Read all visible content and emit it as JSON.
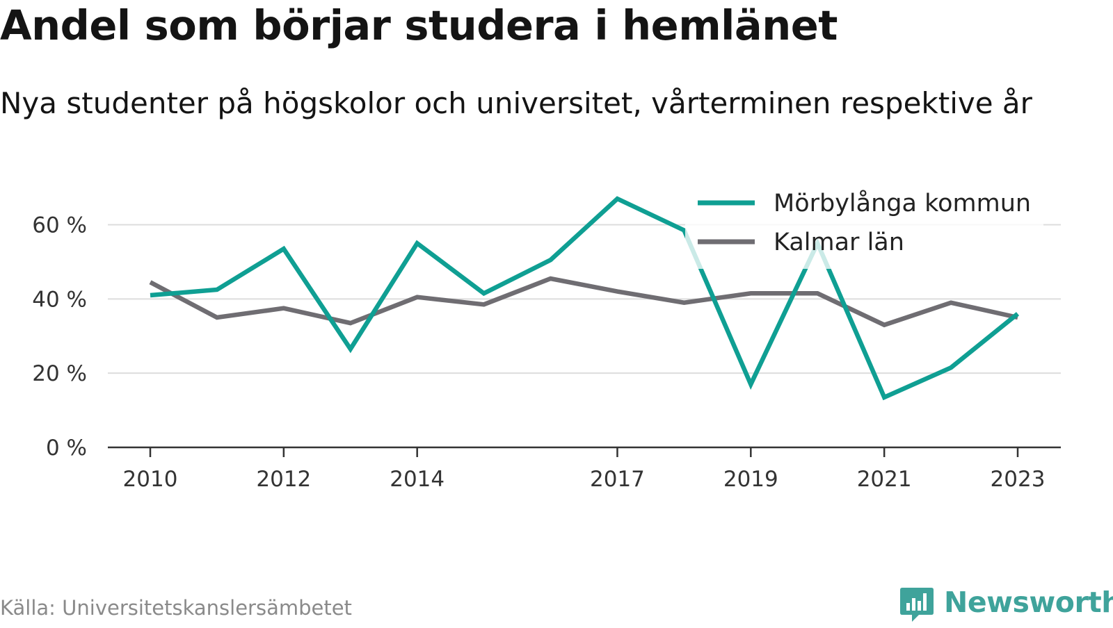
{
  "header": {
    "title": "Andel som börjar studera i hemlänet",
    "subtitle": "Nya studenter på högskolor och universitet, vårterminen respektive år"
  },
  "footer": {
    "source": "Källa: Universitetskanslersämbetet",
    "brand": "Newsworthy",
    "brand_icon": "bar-chart-speech-bubble-icon",
    "brand_color": "#3fa39b"
  },
  "chart_data": {
    "type": "line",
    "x": [
      2010,
      2011,
      2012,
      2013,
      2014,
      2015,
      2016,
      2017,
      2018,
      2019,
      2020,
      2021,
      2022,
      2023
    ],
    "x_tick_labels": [
      "2010",
      "2012",
      "2014",
      "2017",
      "2019",
      "2021",
      "2023"
    ],
    "y_ticks": [
      0,
      20,
      40,
      60
    ],
    "y_tick_labels": [
      "0 %",
      "20 %",
      "40 %",
      "60 %"
    ],
    "ylim": [
      0,
      70
    ],
    "grid": true,
    "legend_position": "top-right",
    "series": [
      {
        "name": "Mörbylånga kommun",
        "color": "#0f9f93",
        "values": [
          41,
          42.5,
          53.5,
          26.5,
          55,
          41.5,
          50.5,
          67,
          58.5,
          17,
          55,
          13.5,
          21.5,
          36
        ]
      },
      {
        "name": "Kalmar län",
        "color": "#6f6d72",
        "values": [
          44.5,
          35,
          37.5,
          33.5,
          40.5,
          38.5,
          45.5,
          42,
          39,
          41.5,
          41.5,
          33,
          39,
          35
        ]
      }
    ]
  }
}
